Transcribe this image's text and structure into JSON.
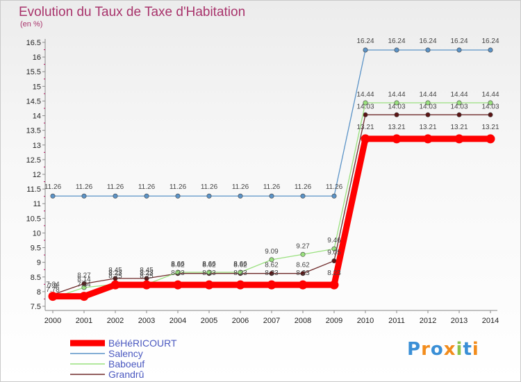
{
  "chart_data": {
    "type": "line",
    "title": "Evolution du Taux de Taxe d'Habitation",
    "unit_label": "(en %)",
    "x": [
      "2000",
      "2001",
      "2002",
      "2003",
      "2004",
      "2005",
      "2006",
      "2007",
      "2008",
      "2009",
      "2010",
      "2011",
      "2012",
      "2013",
      "2014"
    ],
    "ylim": [
      7.5,
      16.5
    ],
    "yticks": [
      "7.5",
      "8",
      "8.5",
      "9",
      "9.5",
      "10",
      "10.5",
      "11",
      "11.5",
      "12",
      "12.5",
      "13",
      "13.5",
      "14",
      "14.5",
      "15",
      "15.5",
      "16",
      "16.5"
    ],
    "grid": false,
    "legend_position": "bottom-left",
    "series": [
      {
        "name": "BéHéRICOURT",
        "color": "#ff0000",
        "values": [
          7.84,
          7.84,
          8.23,
          8.23,
          8.23,
          8.23,
          8.23,
          8.23,
          8.23,
          8.23,
          13.21,
          13.21,
          13.21,
          13.21,
          13.21
        ]
      },
      {
        "name": "Salency",
        "color": "#5b93c7",
        "values": [
          11.26,
          11.26,
          11.26,
          11.26,
          11.26,
          11.26,
          11.26,
          11.26,
          11.26,
          11.26,
          16.24,
          16.24,
          16.24,
          16.24,
          16.24
        ]
      },
      {
        "name": "Baboeuf",
        "color": "#99e07e",
        "values": [
          7.78,
          8.14,
          8.25,
          8.25,
          8.66,
          8.66,
          8.66,
          9.09,
          9.27,
          9.46,
          14.44,
          14.44,
          14.44,
          14.44,
          14.44
        ]
      },
      {
        "name": "Grandrû",
        "color": "#6e2a2a",
        "values": [
          7.9,
          8.27,
          8.45,
          8.45,
          8.62,
          8.62,
          8.62,
          8.62,
          8.62,
          9.05,
          14.03,
          14.03,
          14.03,
          14.03,
          14.03
        ]
      }
    ]
  },
  "logo": {
    "text": "Proxiti",
    "colors": [
      "#3a8fd6",
      "#f28c1c",
      "#3a8fd6",
      "#f28c1c",
      "#8bc34a",
      "#3a8fd6",
      "#f28c1c"
    ]
  }
}
